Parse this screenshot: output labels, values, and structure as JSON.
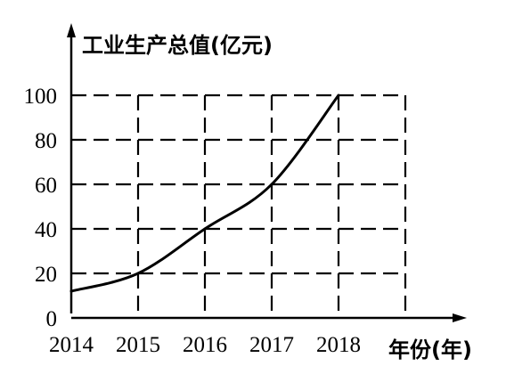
{
  "chart_data": {
    "type": "line",
    "ylabel": "工业生产总值(亿元)",
    "xlabel": "年份(年)",
    "categories": [
      "2014",
      "2015",
      "2016",
      "2017",
      "2018"
    ],
    "series": [
      {
        "values": [
          12,
          20,
          40,
          60,
          100
        ]
      }
    ],
    "ylim": [
      0,
      100
    ],
    "yticks": [
      0,
      20,
      40,
      60,
      80,
      100
    ],
    "grid": true,
    "grid_style": "dashed",
    "line_color": "#000000"
  }
}
